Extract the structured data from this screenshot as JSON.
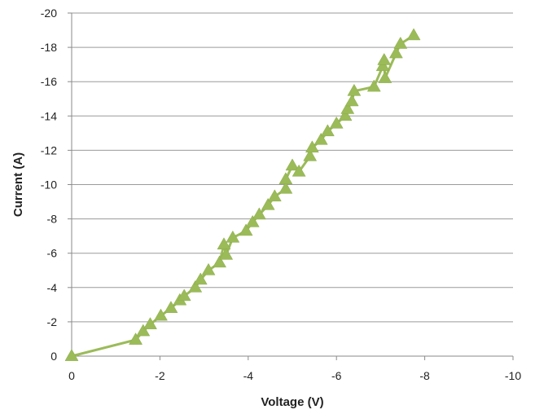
{
  "chart_data": {
    "type": "line",
    "title": "",
    "xlabel": "Voltage (V)",
    "ylabel": "Current (A)",
    "xlim": [
      0,
      -10
    ],
    "ylim": [
      0,
      -20
    ],
    "x_ticks": [
      0,
      -2,
      -4,
      -6,
      -8,
      -10
    ],
    "y_ticks": [
      0,
      -2,
      -4,
      -6,
      -8,
      -10,
      -12,
      -14,
      -16,
      -18,
      -20
    ],
    "x_tick_labels": [
      "0",
      "-2",
      "-4",
      "-6",
      "-8",
      "-10"
    ],
    "y_tick_labels": [
      "0",
      "-2",
      "-4",
      "-6",
      "-8",
      "-10",
      "-12",
      "-14",
      "-16",
      "-18",
      "-20"
    ],
    "grid": "horizontal",
    "legend": "none",
    "colors": {
      "series": "#9bbb59",
      "grid": "#9a9a9a",
      "axis": "#8a8a8a"
    },
    "marker": "triangle",
    "series": [
      {
        "x": [
          0,
          -1.45,
          -1.62,
          -1.78,
          -2.02,
          -2.25,
          -2.45,
          -2.55,
          -2.8,
          -2.92,
          -3.1,
          -3.35,
          -3.45,
          -3.5,
          -3.65,
          -3.95,
          -4.1,
          -4.25,
          -4.45,
          -4.6,
          -4.85,
          -4.85,
          -5.0,
          -5.15,
          -5.4,
          -5.45,
          -5.65,
          -5.8,
          -6.0,
          -6.2,
          -6.25,
          -6.35,
          -6.4,
          -6.85,
          -7.05,
          -7.08,
          -7.1,
          -7.35,
          -7.45,
          -7.75
        ],
        "y": [
          0,
          -0.95,
          -1.45,
          -1.85,
          -2.35,
          -2.8,
          -3.25,
          -3.5,
          -4.0,
          -4.45,
          -5.0,
          -5.45,
          -6.5,
          -5.9,
          -6.9,
          -7.3,
          -7.8,
          -8.25,
          -8.8,
          -9.3,
          -9.75,
          -10.3,
          -11.1,
          -10.75,
          -11.65,
          -12.15,
          -12.6,
          -13.1,
          -13.55,
          -14.0,
          -14.4,
          -14.85,
          -15.45,
          -15.7,
          -16.9,
          -17.25,
          -16.2,
          -17.65,
          -18.2,
          -18.7
        ]
      }
    ]
  }
}
